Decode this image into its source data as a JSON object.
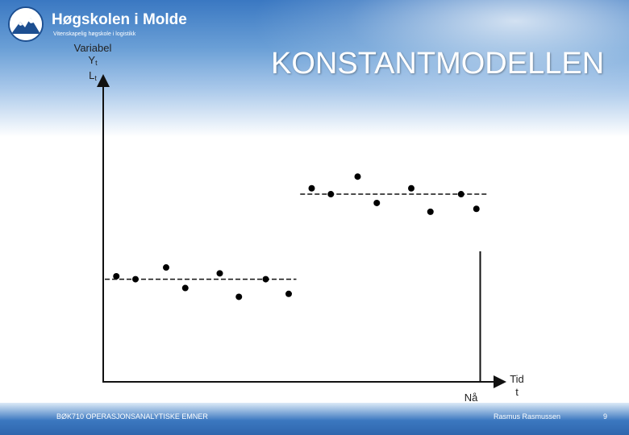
{
  "logo": {
    "name": "Høgskolen i Molde",
    "tagline": "Vitenskapelig høgskole i logistikk"
  },
  "title": "KONSTANTMODELLEN",
  "y_axis_label": {
    "line1": "Variabel",
    "y": "Y",
    "l": "L",
    "subscript": "t"
  },
  "x_axis_label": {
    "line1": "Tid",
    "line2": "t"
  },
  "now_label": "Nå",
  "footer": {
    "left": "BØK710 OPERASJONSANALYTISKE EMNER",
    "author": "Rasmus Rasmussen",
    "page": "9"
  },
  "chart_data": {
    "type": "scatter",
    "xlim": [
      0,
      100
    ],
    "ylim": [
      0,
      100
    ],
    "segments": [
      {
        "level": 35,
        "x_range": [
          0,
          50
        ],
        "points": [
          [
            3,
            36
          ],
          [
            8,
            35
          ],
          [
            16,
            39
          ],
          [
            21,
            32
          ],
          [
            30,
            37
          ],
          [
            35,
            29
          ],
          [
            42,
            35
          ],
          [
            48,
            30
          ]
        ]
      },
      {
        "level": 64,
        "x_range": [
          51,
          100
        ],
        "points": [
          [
            54,
            66
          ],
          [
            59,
            64
          ],
          [
            66,
            70
          ],
          [
            71,
            61
          ],
          [
            80,
            66
          ],
          [
            85,
            58
          ],
          [
            93,
            64
          ],
          [
            97,
            59
          ]
        ]
      }
    ],
    "now_x": 98
  }
}
